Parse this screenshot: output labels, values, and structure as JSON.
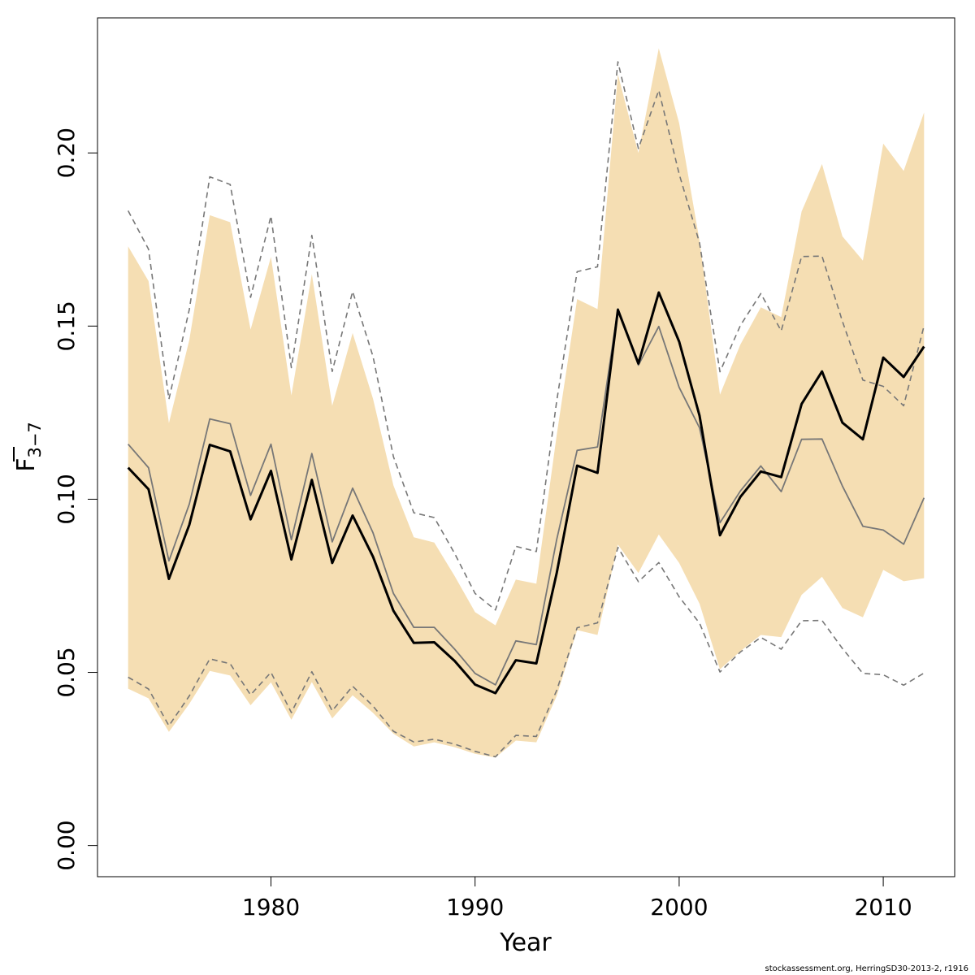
{
  "chart_data": {
    "type": "line",
    "title": "",
    "xlabel": "Year",
    "ylabel_main": "F",
    "ylabel_sub": "3−7",
    "xlim": [
      1971.5,
      2013.5
    ],
    "ylim": [
      -0.009,
      0.239
    ],
    "x_ticks": [
      1980,
      1990,
      2000,
      2010
    ],
    "y_ticks": [
      0.0,
      0.05,
      0.1,
      0.15,
      0.2
    ],
    "y_tick_labels": [
      "0.00",
      "0.05",
      "0.10",
      "0.15",
      "0.20"
    ],
    "x": [
      1973,
      1974,
      1975,
      1976,
      1977,
      1978,
      1979,
      1980,
      1981,
      1982,
      1983,
      1984,
      1985,
      1986,
      1987,
      1988,
      1989,
      1990,
      1991,
      1992,
      1993,
      1994,
      1995,
      1996,
      1997,
      1998,
      1999,
      2000,
      2001,
      2002,
      2003,
      2004,
      2005,
      2006,
      2007,
      2008,
      2009,
      2010,
      2011,
      2012
    ],
    "series": [
      {
        "name": "Confidence band upper",
        "role": "band-upper",
        "color": "#f5deb3",
        "values": [
          0.173,
          0.163,
          0.122,
          0.146,
          0.182,
          0.18,
          0.149,
          0.17,
          0.13,
          0.165,
          0.127,
          0.148,
          0.129,
          0.104,
          0.089,
          0.0875,
          0.0778,
          0.0674,
          0.0636,
          0.0768,
          0.0756,
          0.1186,
          0.1578,
          0.1549,
          0.2227,
          0.2,
          0.2302,
          0.2086,
          0.1746,
          0.1302,
          0.1447,
          0.1554,
          0.1526,
          0.1831,
          0.1968,
          0.1759,
          0.1689,
          0.2027,
          0.1948,
          0.2117
        ]
      },
      {
        "name": "Confidence band lower",
        "role": "band-lower",
        "color": "#f5deb3",
        "values": [
          0.0453,
          0.0425,
          0.0328,
          0.0409,
          0.0504,
          0.0491,
          0.0405,
          0.0471,
          0.0363,
          0.0472,
          0.0367,
          0.0434,
          0.0383,
          0.0323,
          0.0286,
          0.0298,
          0.0284,
          0.0265,
          0.0254,
          0.0303,
          0.0298,
          0.0432,
          0.0622,
          0.0608,
          0.0869,
          0.0787,
          0.0898,
          0.0816,
          0.0698,
          0.0509,
          0.0561,
          0.0608,
          0.0602,
          0.0724,
          0.0776,
          0.0686,
          0.0659,
          0.0796,
          0.0763,
          0.0772
        ]
      },
      {
        "name": "Retrospective upper (dashed)",
        "role": "dashed",
        "color": "#777777",
        "values": [
          0.1833,
          0.1722,
          0.1289,
          0.1548,
          0.1931,
          0.1909,
          0.1583,
          0.1818,
          0.138,
          0.1762,
          0.1369,
          0.16,
          0.1412,
          0.1123,
          0.0961,
          0.0947,
          0.0843,
          0.0728,
          0.068,
          0.0864,
          0.0849,
          0.1284,
          0.1657,
          0.1671,
          0.2263,
          0.2013,
          0.2181,
          0.1939,
          0.174,
          0.1368,
          0.1502,
          0.1594,
          0.1486,
          0.1701,
          0.1702,
          0.1514,
          0.1344,
          0.1326,
          0.127,
          0.1501
        ]
      },
      {
        "name": "Retrospective lower (dashed)",
        "role": "dashed",
        "color": "#777777",
        "values": [
          0.0486,
          0.0452,
          0.0346,
          0.0432,
          0.0539,
          0.0525,
          0.0435,
          0.05,
          0.0384,
          0.0502,
          0.0389,
          0.046,
          0.0403,
          0.033,
          0.0299,
          0.0307,
          0.0293,
          0.0272,
          0.0256,
          0.0318,
          0.0315,
          0.0448,
          0.0629,
          0.0643,
          0.0861,
          0.0762,
          0.0817,
          0.0718,
          0.0642,
          0.0501,
          0.0559,
          0.0601,
          0.0567,
          0.0649,
          0.065,
          0.0569,
          0.0497,
          0.0493,
          0.0463,
          0.0498
        ]
      },
      {
        "name": "Retrospective estimate (grey)",
        "role": "grey",
        "color": "#777777",
        "values": [
          0.1159,
          0.1091,
          0.0822,
          0.0986,
          0.1232,
          0.1218,
          0.1011,
          0.1159,
          0.0883,
          0.1132,
          0.0877,
          0.1032,
          0.0903,
          0.0728,
          0.063,
          0.063,
          0.0567,
          0.0497,
          0.0464,
          0.0591,
          0.058,
          0.0884,
          0.1141,
          0.1151,
          0.155,
          0.1387,
          0.1499,
          0.1323,
          0.1206,
          0.0932,
          0.1024,
          0.1096,
          0.1022,
          0.1173,
          0.1174,
          0.1038,
          0.0922,
          0.0911,
          0.087,
          0.1004
        ]
      },
      {
        "name": "Estimated F (3-7)",
        "role": "main",
        "color": "#000000",
        "values": [
          0.1091,
          0.1029,
          0.077,
          0.0926,
          0.1157,
          0.1138,
          0.0942,
          0.1082,
          0.0826,
          0.1056,
          0.0816,
          0.0953,
          0.0834,
          0.0678,
          0.0585,
          0.0587,
          0.0533,
          0.0465,
          0.044,
          0.0535,
          0.0526,
          0.0787,
          0.1097,
          0.1076,
          0.1547,
          0.1392,
          0.1597,
          0.1455,
          0.1241,
          0.0896,
          0.1007,
          0.108,
          0.1064,
          0.1275,
          0.1369,
          0.1221,
          0.1173,
          0.1409,
          0.1353,
          0.1441
        ]
      }
    ]
  },
  "footer": {
    "text": "stockassessment.org, HerringSD30-2013-2, r1916"
  }
}
